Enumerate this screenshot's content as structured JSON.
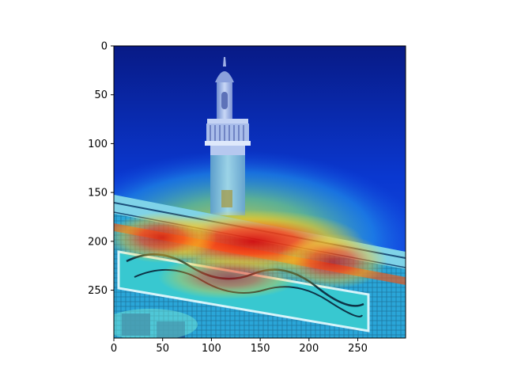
{
  "chart_data": {
    "type": "heatmap",
    "title": "",
    "xlabel": "",
    "ylabel": "",
    "xlim": [
      0,
      299
    ],
    "ylim": [
      299,
      0
    ],
    "y_axis_inverted": true,
    "x_ticks": [
      0,
      50,
      100,
      150,
      200,
      250
    ],
    "y_ticks": [
      0,
      50,
      100,
      150,
      200,
      250
    ],
    "x_tick_labels": [
      "0",
      "50",
      "100",
      "150",
      "200",
      "250"
    ],
    "y_tick_labels": [
      "0",
      "50",
      "100",
      "150",
      "200",
      "250"
    ],
    "colormap": "jet",
    "grid": false,
    "image": "attention heatmap overlaid on photo of a mosque minaret and facade with calligraphy band",
    "hotspots": [
      {
        "x": 150,
        "y": 205,
        "intensity": 1.0
      },
      {
        "x": 50,
        "y": 215,
        "intensity": 0.9
      },
      {
        "x": 230,
        "y": 220,
        "intensity": 0.8
      },
      {
        "x": 150,
        "y": 240,
        "intensity": 0.75
      },
      {
        "x": 115,
        "y": 165,
        "intensity": 0.55
      }
    ]
  },
  "colors": {
    "sky_deep": "#0a1e8c",
    "sky_mid": "#0a3dd6",
    "hot": "#e01010",
    "warm": "#ffd21a",
    "cool": "#27d0c8"
  }
}
